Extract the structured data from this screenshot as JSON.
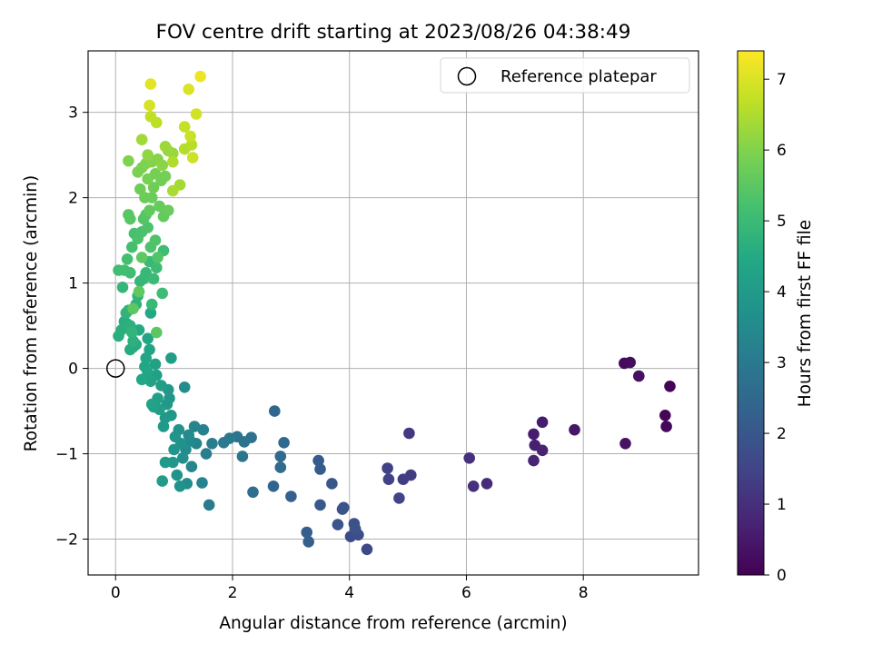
{
  "chart_data": {
    "type": "scatter",
    "title": "FOV centre drift starting at 2023/08/26 04:38:49",
    "xlabel": "Angular distance from reference (arcmin)",
    "ylabel": "Rotation from reference (arcmin)",
    "xlim": [
      -0.47,
      9.97
    ],
    "ylim": [
      -2.42,
      3.72
    ],
    "x_ticks": [
      0,
      2,
      4,
      6,
      8
    ],
    "y_ticks": [
      -2,
      -1,
      0,
      1,
      2,
      3
    ],
    "grid": true,
    "legend": {
      "placement": "top-right",
      "entries": [
        {
          "label": "Reference platepar",
          "marker": "open-circle"
        }
      ]
    },
    "reference_point": {
      "x": 0,
      "y": 0
    },
    "colorbar": {
      "label": "Hours from first FF file",
      "colormap": "viridis",
      "range": [
        0,
        7.4
      ],
      "ticks": [
        0,
        1,
        2,
        3,
        4,
        5,
        6,
        7
      ]
    },
    "points": [
      {
        "x": 9.48,
        "y": -0.21,
        "c": 0.05
      },
      {
        "x": 9.4,
        "y": -0.55,
        "c": 0.1
      },
      {
        "x": 9.42,
        "y": -0.68,
        "c": 0.15
      },
      {
        "x": 8.7,
        "y": 0.06,
        "c": 0.2
      },
      {
        "x": 8.8,
        "y": 0.07,
        "c": 0.25
      },
      {
        "x": 8.95,
        "y": -0.09,
        "c": 0.3
      },
      {
        "x": 8.72,
        "y": -0.88,
        "c": 0.35
      },
      {
        "x": 7.85,
        "y": -0.72,
        "c": 0.45
      },
      {
        "x": 7.3,
        "y": -0.63,
        "c": 0.55
      },
      {
        "x": 7.15,
        "y": -0.77,
        "c": 0.6
      },
      {
        "x": 7.17,
        "y": -0.9,
        "c": 0.65
      },
      {
        "x": 7.3,
        "y": -0.96,
        "c": 0.7
      },
      {
        "x": 7.15,
        "y": -1.08,
        "c": 0.75
      },
      {
        "x": 6.35,
        "y": -1.35,
        "c": 0.9
      },
      {
        "x": 6.12,
        "y": -1.38,
        "c": 1.0
      },
      {
        "x": 6.05,
        "y": -1.05,
        "c": 1.05
      },
      {
        "x": 5.02,
        "y": -0.76,
        "c": 1.2
      },
      {
        "x": 5.05,
        "y": -1.25,
        "c": 1.3
      },
      {
        "x": 4.92,
        "y": -1.3,
        "c": 1.35
      },
      {
        "x": 4.65,
        "y": -1.17,
        "c": 1.4
      },
      {
        "x": 4.67,
        "y": -1.3,
        "c": 1.45
      },
      {
        "x": 4.85,
        "y": -1.52,
        "c": 1.5
      },
      {
        "x": 4.3,
        "y": -2.12,
        "c": 1.65
      },
      {
        "x": 4.02,
        "y": -1.97,
        "c": 1.7
      },
      {
        "x": 4.15,
        "y": -1.95,
        "c": 1.75
      },
      {
        "x": 4.08,
        "y": -1.82,
        "c": 1.8
      },
      {
        "x": 4.1,
        "y": -1.88,
        "c": 1.85
      },
      {
        "x": 3.9,
        "y": -1.63,
        "c": 1.9
      },
      {
        "x": 3.88,
        "y": -1.65,
        "c": 1.92
      },
      {
        "x": 3.8,
        "y": -1.83,
        "c": 1.95
      },
      {
        "x": 3.7,
        "y": -1.35,
        "c": 2.0
      },
      {
        "x": 3.5,
        "y": -1.6,
        "c": 2.05
      },
      {
        "x": 3.47,
        "y": -1.08,
        "c": 2.1
      },
      {
        "x": 3.5,
        "y": -1.18,
        "c": 2.15
      },
      {
        "x": 3.27,
        "y": -1.92,
        "c": 2.2
      },
      {
        "x": 3.3,
        "y": -2.03,
        "c": 2.25
      },
      {
        "x": 3.0,
        "y": -1.5,
        "c": 2.3
      },
      {
        "x": 2.7,
        "y": -1.38,
        "c": 2.4
      },
      {
        "x": 2.72,
        "y": -0.5,
        "c": 2.45
      },
      {
        "x": 2.88,
        "y": -0.87,
        "c": 2.5
      },
      {
        "x": 2.82,
        "y": -1.03,
        "c": 2.55
      },
      {
        "x": 2.82,
        "y": -1.16,
        "c": 2.6
      },
      {
        "x": 2.35,
        "y": -1.45,
        "c": 2.7
      },
      {
        "x": 2.32,
        "y": -0.81,
        "c": 2.75
      },
      {
        "x": 2.2,
        "y": -0.86,
        "c": 2.8
      },
      {
        "x": 2.08,
        "y": -0.8,
        "c": 2.85
      },
      {
        "x": 2.17,
        "y": -1.03,
        "c": 2.9
      },
      {
        "x": 1.95,
        "y": -0.82,
        "c": 2.95
      },
      {
        "x": 1.85,
        "y": -0.87,
        "c": 3.0
      },
      {
        "x": 1.6,
        "y": -1.6,
        "c": 3.05
      },
      {
        "x": 1.65,
        "y": -0.88,
        "c": 3.1
      },
      {
        "x": 1.55,
        "y": -1.0,
        "c": 3.15
      },
      {
        "x": 1.5,
        "y": -0.72,
        "c": 3.2
      },
      {
        "x": 1.48,
        "y": -1.34,
        "c": 3.25
      },
      {
        "x": 1.38,
        "y": -0.88,
        "c": 3.3
      },
      {
        "x": 1.35,
        "y": -0.68,
        "c": 3.35
      },
      {
        "x": 1.3,
        "y": -1.15,
        "c": 3.4
      },
      {
        "x": 1.28,
        "y": -0.85,
        "c": 3.45
      },
      {
        "x": 1.25,
        "y": -0.78,
        "c": 3.5
      },
      {
        "x": 1.22,
        "y": -1.35,
        "c": 3.55
      },
      {
        "x": 1.2,
        "y": -0.95,
        "c": 3.6
      },
      {
        "x": 1.18,
        "y": -0.22,
        "c": 3.62
      },
      {
        "x": 1.15,
        "y": -1.05,
        "c": 3.65
      },
      {
        "x": 1.12,
        "y": -0.88,
        "c": 3.7
      },
      {
        "x": 1.1,
        "y": -1.38,
        "c": 3.72
      },
      {
        "x": 1.05,
        "y": -1.25,
        "c": 3.75
      },
      {
        "x": 1.08,
        "y": -0.72,
        "c": 3.78
      },
      {
        "x": 1.02,
        "y": -0.8,
        "c": 3.8
      },
      {
        "x": 1.0,
        "y": -0.95,
        "c": 3.82
      },
      {
        "x": 0.98,
        "y": -1.1,
        "c": 3.85
      },
      {
        "x": 0.95,
        "y": -0.55,
        "c": 3.88
      },
      {
        "x": 0.92,
        "y": -0.35,
        "c": 3.9
      },
      {
        "x": 0.9,
        "y": -0.25,
        "c": 3.92
      },
      {
        "x": 0.88,
        "y": -0.42,
        "c": 3.95
      },
      {
        "x": 0.85,
        "y": -0.58,
        "c": 3.97
      },
      {
        "x": 0.85,
        "y": -1.1,
        "c": 4.0
      },
      {
        "x": 0.82,
        "y": -0.68,
        "c": 4.02
      },
      {
        "x": 0.8,
        "y": -1.32,
        "c": 4.05
      },
      {
        "x": 0.95,
        "y": 0.12,
        "c": 4.07
      },
      {
        "x": 0.78,
        "y": -0.2,
        "c": 4.1
      },
      {
        "x": 0.75,
        "y": -0.48,
        "c": 4.12
      },
      {
        "x": 0.72,
        "y": -0.35,
        "c": 4.15
      },
      {
        "x": 0.7,
        "y": -0.08,
        "c": 4.17
      },
      {
        "x": 0.68,
        "y": 0.05,
        "c": 4.2
      },
      {
        "x": 0.65,
        "y": -0.45,
        "c": 4.22
      },
      {
        "x": 0.62,
        "y": -0.42,
        "c": 4.25
      },
      {
        "x": 0.6,
        "y": -0.15,
        "c": 4.27
      },
      {
        "x": 0.58,
        "y": 0.22,
        "c": 4.3
      },
      {
        "x": 0.55,
        "y": -0.05,
        "c": 4.32
      },
      {
        "x": 0.55,
        "y": 0.35,
        "c": 4.35
      },
      {
        "x": 0.52,
        "y": 0.12,
        "c": 4.37
      },
      {
        "x": 0.5,
        "y": 0.02,
        "c": 4.4
      },
      {
        "x": 0.45,
        "y": -0.13,
        "c": 4.42
      },
      {
        "x": 0.6,
        "y": 0.65,
        "c": 4.45
      },
      {
        "x": 0.4,
        "y": 0.45,
        "c": 4.47
      },
      {
        "x": 0.35,
        "y": 0.28,
        "c": 4.5
      },
      {
        "x": 0.3,
        "y": 0.25,
        "c": 4.52
      },
      {
        "x": 0.25,
        "y": 0.22,
        "c": 4.55
      },
      {
        "x": 0.2,
        "y": 0.52,
        "c": 4.57
      },
      {
        "x": 0.15,
        "y": 0.55,
        "c": 4.6
      },
      {
        "x": 0.05,
        "y": 0.38,
        "c": 4.62
      },
      {
        "x": 0.1,
        "y": 0.45,
        "c": 4.65
      },
      {
        "x": 0.3,
        "y": 0.32,
        "c": 4.67
      },
      {
        "x": 0.25,
        "y": 0.5,
        "c": 4.7
      },
      {
        "x": 0.22,
        "y": 0.68,
        "c": 4.72
      },
      {
        "x": 0.35,
        "y": 0.75,
        "c": 4.75
      },
      {
        "x": 0.38,
        "y": 0.85,
        "c": 4.77
      },
      {
        "x": 0.18,
        "y": 0.65,
        "c": 4.8
      },
      {
        "x": 0.28,
        "y": 0.42,
        "c": 4.82
      },
      {
        "x": 0.12,
        "y": 0.95,
        "c": 4.85
      },
      {
        "x": 0.42,
        "y": 1.02,
        "c": 4.87
      },
      {
        "x": 0.48,
        "y": 1.05,
        "c": 4.9
      },
      {
        "x": 0.52,
        "y": 1.12,
        "c": 4.92
      },
      {
        "x": 0.58,
        "y": 1.25,
        "c": 4.95
      },
      {
        "x": 0.62,
        "y": 0.75,
        "c": 4.97
      },
      {
        "x": 0.65,
        "y": 1.05,
        "c": 5.0
      },
      {
        "x": 0.7,
        "y": 1.18,
        "c": 5.02
      },
      {
        "x": 0.8,
        "y": 0.88,
        "c": 5.05
      },
      {
        "x": 0.82,
        "y": 1.38,
        "c": 5.07
      },
      {
        "x": 0.25,
        "y": 1.12,
        "c": 5.1
      },
      {
        "x": 0.05,
        "y": 1.15,
        "c": 5.12
      },
      {
        "x": 0.15,
        "y": 1.15,
        "c": 5.15
      },
      {
        "x": 0.2,
        "y": 1.28,
        "c": 5.17
      },
      {
        "x": 0.28,
        "y": 1.42,
        "c": 5.2
      },
      {
        "x": 0.32,
        "y": 1.58,
        "c": 5.22
      },
      {
        "x": 0.38,
        "y": 1.52,
        "c": 5.25
      },
      {
        "x": 0.45,
        "y": 1.6,
        "c": 5.27
      },
      {
        "x": 0.55,
        "y": 1.65,
        "c": 5.3
      },
      {
        "x": 0.6,
        "y": 1.42,
        "c": 5.32
      },
      {
        "x": 0.68,
        "y": 1.5,
        "c": 5.35
      },
      {
        "x": 0.72,
        "y": 1.3,
        "c": 5.37
      },
      {
        "x": 0.48,
        "y": 1.75,
        "c": 5.4
      },
      {
        "x": 0.52,
        "y": 1.8,
        "c": 5.42
      },
      {
        "x": 0.25,
        "y": 1.75,
        "c": 5.45
      },
      {
        "x": 0.22,
        "y": 1.8,
        "c": 5.47
      },
      {
        "x": 0.7,
        "y": 0.42,
        "c": 5.5
      },
      {
        "x": 0.3,
        "y": 0.7,
        "c": 5.52
      },
      {
        "x": 0.4,
        "y": 0.9,
        "c": 5.55
      },
      {
        "x": 0.45,
        "y": 1.3,
        "c": 5.57
      },
      {
        "x": 0.58,
        "y": 1.85,
        "c": 5.6
      },
      {
        "x": 0.82,
        "y": 1.78,
        "c": 5.62
      },
      {
        "x": 0.75,
        "y": 1.9,
        "c": 5.65
      },
      {
        "x": 0.9,
        "y": 1.85,
        "c": 5.67
      },
      {
        "x": 0.62,
        "y": 2.0,
        "c": 5.7
      },
      {
        "x": 0.5,
        "y": 2.0,
        "c": 5.72
      },
      {
        "x": 0.42,
        "y": 2.1,
        "c": 5.75
      },
      {
        "x": 0.65,
        "y": 2.12,
        "c": 5.77
      },
      {
        "x": 0.78,
        "y": 2.2,
        "c": 5.8
      },
      {
        "x": 0.85,
        "y": 2.25,
        "c": 5.82
      },
      {
        "x": 0.68,
        "y": 2.28,
        "c": 5.85
      },
      {
        "x": 0.55,
        "y": 2.22,
        "c": 5.87
      },
      {
        "x": 0.38,
        "y": 2.3,
        "c": 5.9
      },
      {
        "x": 0.45,
        "y": 2.35,
        "c": 5.92
      },
      {
        "x": 0.52,
        "y": 2.4,
        "c": 5.95
      },
      {
        "x": 0.22,
        "y": 2.43,
        "c": 5.97
      },
      {
        "x": 0.62,
        "y": 2.42,
        "c": 6.0
      },
      {
        "x": 0.72,
        "y": 2.45,
        "c": 6.05
      },
      {
        "x": 0.8,
        "y": 2.38,
        "c": 6.1
      },
      {
        "x": 0.55,
        "y": 2.5,
        "c": 6.15
      },
      {
        "x": 0.9,
        "y": 2.55,
        "c": 6.2
      },
      {
        "x": 0.98,
        "y": 2.52,
        "c": 6.25
      },
      {
        "x": 0.85,
        "y": 2.6,
        "c": 6.3
      },
      {
        "x": 0.45,
        "y": 2.68,
        "c": 6.35
      },
      {
        "x": 1.1,
        "y": 2.15,
        "c": 6.4
      },
      {
        "x": 0.98,
        "y": 2.08,
        "c": 6.45
      },
      {
        "x": 0.98,
        "y": 2.42,
        "c": 6.5
      },
      {
        "x": 1.18,
        "y": 2.57,
        "c": 6.55
      },
      {
        "x": 1.3,
        "y": 2.62,
        "c": 6.6
      },
      {
        "x": 0.7,
        "y": 2.88,
        "c": 6.65
      },
      {
        "x": 0.6,
        "y": 2.95,
        "c": 6.7
      },
      {
        "x": 1.18,
        "y": 2.83,
        "c": 6.75
      },
      {
        "x": 1.28,
        "y": 2.72,
        "c": 6.8
      },
      {
        "x": 1.32,
        "y": 2.47,
        "c": 6.85
      },
      {
        "x": 1.38,
        "y": 2.98,
        "c": 6.9
      },
      {
        "x": 0.58,
        "y": 3.08,
        "c": 6.95
      },
      {
        "x": 1.25,
        "y": 3.27,
        "c": 7.0
      },
      {
        "x": 0.6,
        "y": 3.33,
        "c": 7.1
      },
      {
        "x": 1.45,
        "y": 3.42,
        "c": 7.2
      }
    ]
  }
}
